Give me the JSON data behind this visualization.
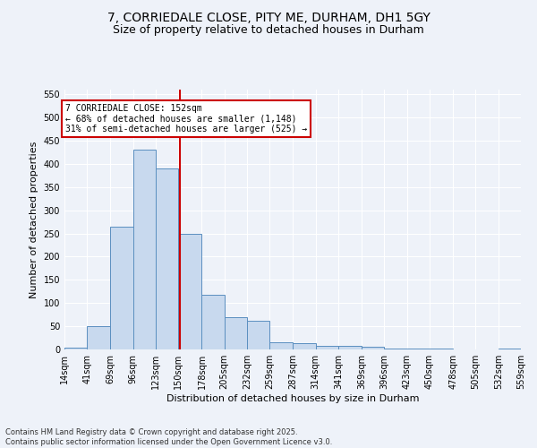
{
  "title1": "7, CORRIEDALE CLOSE, PITY ME, DURHAM, DH1 5GY",
  "title2": "Size of property relative to detached houses in Durham",
  "xlabel": "Distribution of detached houses by size in Durham",
  "ylabel": "Number of detached properties",
  "bin_labels": [
    "14sqm",
    "41sqm",
    "69sqm",
    "96sqm",
    "123sqm",
    "150sqm",
    "178sqm",
    "205sqm",
    "232sqm",
    "259sqm",
    "287sqm",
    "314sqm",
    "341sqm",
    "369sqm",
    "396sqm",
    "423sqm",
    "450sqm",
    "478sqm",
    "505sqm",
    "532sqm",
    "559sqm"
  ],
  "bin_values": [
    3,
    50,
    265,
    430,
    390,
    250,
    118,
    70,
    62,
    15,
    14,
    7,
    8,
    6,
    2,
    1,
    1,
    0,
    0,
    1
  ],
  "bin_edges": [
    14,
    41,
    69,
    96,
    123,
    150,
    178,
    205,
    232,
    259,
    287,
    314,
    341,
    369,
    396,
    423,
    450,
    478,
    505,
    532,
    559
  ],
  "bar_color": "#c8d9ee",
  "bar_edge_color": "#5b8fc0",
  "property_size": 152,
  "vline_color": "#cc0000",
  "annotation_title": "7 CORRIEDALE CLOSE: 152sqm",
  "annotation_line1": "← 68% of detached houses are smaller (1,148)",
  "annotation_line2": "31% of semi-detached houses are larger (525) →",
  "annotation_box_color": "#ffffff",
  "annotation_box_edge": "#cc0000",
  "ylim": [
    0,
    560
  ],
  "yticks": [
    0,
    50,
    100,
    150,
    200,
    250,
    300,
    350,
    400,
    450,
    500,
    550
  ],
  "footnote1": "Contains HM Land Registry data © Crown copyright and database right 2025.",
  "footnote2": "Contains public sector information licensed under the Open Government Licence v3.0.",
  "bg_color": "#eef2f9",
  "grid_color": "#ffffff",
  "title_fontsize": 10,
  "subtitle_fontsize": 9,
  "annot_fontsize": 7,
  "axis_label_fontsize": 8,
  "tick_fontsize": 7
}
